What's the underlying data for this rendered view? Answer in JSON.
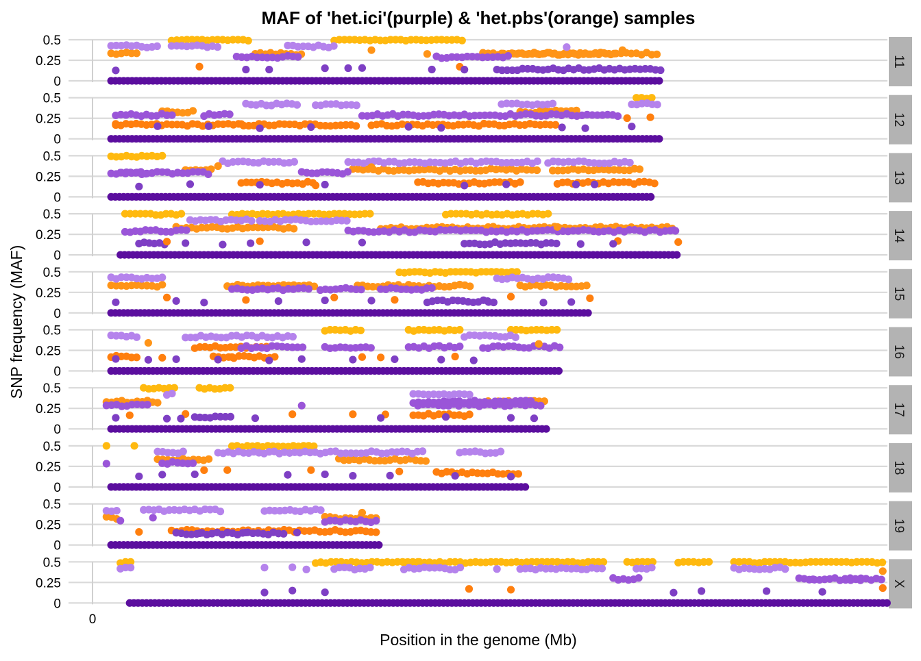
{
  "chart_data": {
    "type": "scatter",
    "title": "MAF of 'het.ici'(purple) & 'het.pbs'(orange) samples",
    "xlabel": "Position in the genome (Mb)",
    "ylabel": "SNP frequency (MAF)",
    "x_tick_labels": [
      "0"
    ],
    "y_ticks": [
      0,
      0.25,
      0.5
    ],
    "y_tick_labels": [
      "0",
      "0.25",
      "0.5"
    ],
    "ylim": [
      0,
      0.5
    ],
    "xlim": [
      0,
      171
    ],
    "facet_layout": "rows, strip on right",
    "grid": true,
    "series": [
      {
        "key": "ici",
        "colors": {
          "zero": "#5b0e9e",
          "low": "#7e3fc4",
          "mid": "#9a55d8",
          "high": "#b583ec"
        }
      },
      {
        "key": "pbs",
        "colors": {
          "low": "#ff7f0e",
          "mid": "#ff9417",
          "high": "#ffb90f"
        }
      }
    ],
    "panels": [
      {
        "label": "11",
        "length": 122,
        "ici_segments": [
          [
            4,
            14,
            0.42
          ],
          [
            17,
            28,
            0.42
          ],
          [
            31,
            45,
            0.29
          ],
          [
            42,
            52,
            0.42
          ],
          [
            87,
            123,
            0.14
          ],
          [
            74,
            90,
            0.29
          ]
        ],
        "pbs_segments": [
          [
            4,
            10,
            0.33
          ],
          [
            52,
            80,
            0.5
          ],
          [
            17,
            34,
            0.5
          ],
          [
            88,
            113,
            0.33
          ],
          [
            84,
            122,
            0.33
          ],
          [
            35,
            45,
            0.33
          ]
        ],
        "ici_scatter": [
          [
            5,
            0.14
          ],
          [
            33,
            0.14
          ],
          [
            38,
            0.14
          ],
          [
            50,
            0.14
          ],
          [
            55,
            0.14
          ],
          [
            58,
            0.17
          ],
          [
            73,
            0.14
          ],
          [
            80,
            0.14
          ],
          [
            102,
            0.42
          ]
        ],
        "pbs_scatter": [
          [
            23,
            0.16
          ],
          [
            60,
            0.37
          ],
          [
            72,
            0.33
          ],
          [
            79,
            0.16
          ],
          [
            114,
            0.38
          ]
        ]
      },
      {
        "label": "12",
        "length": 122,
        "ici_segments": [
          [
            5,
            18,
            0.29
          ],
          [
            24,
            30,
            0.29
          ],
          [
            33,
            45,
            0.42
          ],
          [
            48,
            57,
            0.42
          ],
          [
            58,
            114,
            0.29
          ],
          [
            88,
            100,
            0.42
          ]
        ],
        "pbs_segments": [
          [
            5,
            57,
            0.17
          ],
          [
            60,
            100,
            0.17
          ],
          [
            15,
            22,
            0.33
          ],
          [
            92,
            105,
            0.33
          ],
          [
            117,
            121,
            0.5
          ]
        ],
        "ici_scatter": [
          [
            14,
            0.14
          ],
          [
            25,
            0.14
          ],
          [
            36,
            0.14
          ],
          [
            47,
            0.14
          ],
          [
            68,
            0.14
          ],
          [
            75,
            0.14
          ],
          [
            101,
            0.14
          ],
          [
            106,
            0.14
          ],
          [
            116,
            0.14
          ]
        ],
        "pbs_scatter": [
          [
            5,
            0.17
          ],
          [
            32,
            0.17
          ],
          [
            115,
            0.25
          ],
          [
            120,
            0.25
          ]
        ],
        "ici_extra": [
          [
            116,
            122,
            0.42
          ]
        ]
      },
      {
        "label": "13",
        "length": 121,
        "ici_segments": [
          [
            4,
            25,
            0.29
          ],
          [
            28,
            44,
            0.42
          ],
          [
            45,
            55,
            0.29
          ],
          [
            55,
            96,
            0.42
          ],
          [
            98,
            116,
            0.42
          ],
          [
            6,
            12,
            0.29
          ]
        ],
        "pbs_segments": [
          [
            4,
            16,
            0.5
          ],
          [
            20,
            26,
            0.33
          ],
          [
            32,
            48,
            0.17
          ],
          [
            56,
            96,
            0.33
          ],
          [
            70,
            92,
            0.17
          ],
          [
            100,
            121,
            0.17
          ],
          [
            99,
            118,
            0.33
          ]
        ],
        "ici_scatter": [
          [
            10,
            0.14
          ],
          [
            21,
            0.14
          ],
          [
            36,
            0.14
          ],
          [
            50,
            0.14
          ],
          [
            80,
            0.14
          ],
          [
            89,
            0.14
          ],
          [
            104,
            0.14
          ],
          [
            108,
            0.14
          ]
        ],
        "pbs_scatter": [
          [
            27,
            0.37
          ],
          [
            48,
            0.14
          ],
          [
            60,
            0.37
          ]
        ]
      },
      {
        "label": "14",
        "length": 126,
        "ici_segments": [
          [
            7,
            21,
            0.29
          ],
          [
            21,
            35,
            0.42
          ],
          [
            36,
            55,
            0.42
          ],
          [
            55,
            126,
            0.29
          ],
          [
            80,
            100,
            0.14
          ],
          [
            10,
            16,
            0.14
          ]
        ],
        "pbs_segments": [
          [
            7,
            20,
            0.5
          ],
          [
            30,
            60,
            0.5
          ],
          [
            76,
            98,
            0.5
          ],
          [
            18,
            44,
            0.33
          ],
          [
            62,
            125,
            0.33
          ]
        ],
        "ici_scatter": [
          [
            20,
            0.14
          ],
          [
            28,
            0.14
          ],
          [
            34,
            0.14
          ],
          [
            46,
            0.14
          ],
          [
            58,
            0.14
          ],
          [
            90,
            0.14
          ],
          [
            105,
            0.14
          ],
          [
            112,
            0.14
          ],
          [
            125,
            0.29
          ]
        ],
        "pbs_scatter": [
          [
            16,
            0.17
          ],
          [
            36,
            0.17
          ],
          [
            100,
            0.33
          ],
          [
            113,
            0.17
          ],
          [
            126,
            0.17
          ]
        ]
      },
      {
        "label": "15",
        "length": 107,
        "ici_segments": [
          [
            4,
            15,
            0.42
          ],
          [
            30,
            47,
            0.29
          ],
          [
            49,
            58,
            0.29
          ],
          [
            62,
            73,
            0.29
          ],
          [
            72,
            87,
            0.14
          ],
          [
            87,
            103,
            0.42
          ]
        ],
        "pbs_segments": [
          [
            4,
            15,
            0.33
          ],
          [
            29,
            48,
            0.33
          ],
          [
            66,
            92,
            0.5
          ],
          [
            57,
            82,
            0.33
          ],
          [
            92,
            107,
            0.33
          ]
        ],
        "ici_scatter": [
          [
            5,
            0.14
          ],
          [
            18,
            0.14
          ],
          [
            24,
            0.14
          ],
          [
            40,
            0.14
          ],
          [
            50,
            0.14
          ],
          [
            60,
            0.14
          ],
          [
            85,
            0.14
          ],
          [
            97,
            0.14
          ],
          [
            103,
            0.14
          ]
        ],
        "pbs_scatter": [
          [
            16,
            0.2
          ],
          [
            33,
            0.17
          ],
          [
            52,
            0.2
          ],
          [
            65,
            0.17
          ],
          [
            90,
            0.2
          ],
          [
            107,
            0.17
          ]
        ]
      },
      {
        "label": "16",
        "length": 101,
        "ici_segments": [
          [
            4,
            10,
            0.42
          ],
          [
            20,
            44,
            0.42
          ],
          [
            32,
            46,
            0.29
          ],
          [
            50,
            60,
            0.29
          ],
          [
            68,
            80,
            0.29
          ],
          [
            84,
            101,
            0.29
          ],
          [
            80,
            92,
            0.42
          ]
        ],
        "pbs_segments": [
          [
            4,
            10,
            0.17
          ],
          [
            22,
            38,
            0.29
          ],
          [
            50,
            58,
            0.5
          ],
          [
            68,
            79,
            0.5
          ],
          [
            90,
            100,
            0.5
          ],
          [
            26,
            40,
            0.17
          ]
        ],
        "ici_scatter": [
          [
            5,
            0.14
          ],
          [
            12,
            0.14
          ],
          [
            18,
            0.14
          ],
          [
            27,
            0.14
          ],
          [
            38,
            0.14
          ],
          [
            45,
            0.14
          ],
          [
            56,
            0.14
          ],
          [
            65,
            0.14
          ],
          [
            75,
            0.14
          ],
          [
            82,
            0.14
          ]
        ],
        "pbs_scatter": [
          [
            12,
            0.34
          ],
          [
            15,
            0.17
          ],
          [
            30,
            0.17
          ],
          [
            58,
            0.17
          ],
          [
            62,
            0.17
          ],
          [
            78,
            0.17
          ],
          [
            96,
            0.34
          ]
        ]
      },
      {
        "label": "17",
        "length": 98,
        "ici_segments": [
          [
            3,
            12,
            0.29
          ],
          [
            22,
            30,
            0.14
          ],
          [
            70,
            97,
            0.29
          ],
          [
            69,
            95,
            0.33
          ],
          [
            69,
            82,
            0.42
          ],
          [
            16,
            18,
            0.42
          ]
        ],
        "pbs_segments": [
          [
            3,
            14,
            0.33
          ],
          [
            11,
            18,
            0.5
          ],
          [
            23,
            30,
            0.5
          ],
          [
            69,
            82,
            0.17
          ],
          [
            84,
            98,
            0.33
          ]
        ],
        "ici_scatter": [
          [
            5,
            0.14
          ],
          [
            16,
            0.14
          ],
          [
            19,
            0.14
          ],
          [
            35,
            0.14
          ],
          [
            45,
            0.29
          ],
          [
            62,
            0.14
          ],
          [
            76,
            0.14
          ],
          [
            90,
            0.14
          ],
          [
            95,
            0.14
          ]
        ],
        "pbs_scatter": [
          [
            8,
            0.17
          ],
          [
            20,
            0.17
          ],
          [
            43,
            0.17
          ],
          [
            56,
            0.17
          ],
          [
            63,
            0.17
          ]
        ]
      },
      {
        "label": "18",
        "length": 94,
        "ici_segments": [
          [
            14,
            20,
            0.42
          ],
          [
            27,
            72,
            0.42
          ],
          [
            79,
            88,
            0.42
          ],
          [
            15,
            22,
            0.29
          ]
        ],
        "pbs_segments": [
          [
            14,
            26,
            0.33
          ],
          [
            30,
            48,
            0.5
          ],
          [
            53,
            72,
            0.33
          ],
          [
            74,
            92,
            0.17
          ]
        ],
        "ici_scatter": [
          [
            3,
            0.29
          ],
          [
            10,
            0.14
          ],
          [
            15,
            0.14
          ],
          [
            22,
            0.14
          ],
          [
            42,
            0.14
          ],
          [
            50,
            0.14
          ],
          [
            56,
            0.14
          ],
          [
            64,
            0.14
          ],
          [
            78,
            0.14
          ],
          [
            90,
            0.14
          ]
        ],
        "pbs_scatter": [
          [
            3,
            0.5
          ],
          [
            9,
            0.5
          ],
          [
            24,
            0.2
          ],
          [
            29,
            0.2
          ],
          [
            47,
            0.2
          ],
          [
            66,
            0.2
          ]
        ]
      },
      {
        "label": "19",
        "length": 62,
        "ici_segments": [
          [
            3,
            6,
            0.42
          ],
          [
            11,
            28,
            0.42
          ],
          [
            37,
            50,
            0.42
          ],
          [
            50,
            62,
            0.29
          ],
          [
            18,
            42,
            0.14
          ]
        ],
        "pbs_segments": [
          [
            3,
            6,
            0.33
          ],
          [
            17,
            62,
            0.17
          ],
          [
            50,
            62,
            0.33
          ]
        ],
        "ici_scatter": [
          [
            6,
            0.29
          ],
          [
            13,
            0.33
          ],
          [
            23,
            0.14
          ],
          [
            33,
            0.14
          ],
          [
            44,
            0.14
          ]
        ],
        "pbs_scatter": [
          [
            10,
            0.17
          ],
          [
            58,
            0.4
          ]
        ]
      },
      {
        "label": "X",
        "length": 171,
        "ici_segments": [
          [
            6,
            9,
            0.42
          ],
          [
            52,
            60,
            0.42
          ],
          [
            67,
            80,
            0.42
          ],
          [
            92,
            110,
            0.42
          ],
          [
            117,
            121,
            0.42
          ],
          [
            138,
            150,
            0.42
          ],
          [
            112,
            118,
            0.29
          ],
          [
            152,
            166,
            0.29
          ],
          [
            162,
            170,
            0.29
          ]
        ],
        "pbs_segments": [
          [
            6,
            9,
            0.5
          ],
          [
            48,
            70,
            0.5
          ],
          [
            67,
            110,
            0.5
          ],
          [
            115,
            121,
            0.5
          ],
          [
            126,
            133,
            0.5
          ],
          [
            138,
            170,
            0.5
          ]
        ],
        "ici_scatter": [
          [
            37,
            0.42
          ],
          [
            43,
            0.42
          ],
          [
            46,
            0.42
          ],
          [
            37,
            0.14
          ],
          [
            43,
            0.14
          ],
          [
            50,
            0.14
          ],
          [
            87,
            0.42
          ],
          [
            125,
            0.14
          ],
          [
            131,
            0.14
          ],
          [
            145,
            0.14
          ],
          [
            155,
            0.29
          ],
          [
            157,
            0.14
          ]
        ],
        "pbs_scatter": [
          [
            81,
            0.17
          ],
          [
            90,
            0.17
          ],
          [
            170,
            0.17
          ],
          [
            170,
            0.4
          ]
        ]
      }
    ]
  }
}
